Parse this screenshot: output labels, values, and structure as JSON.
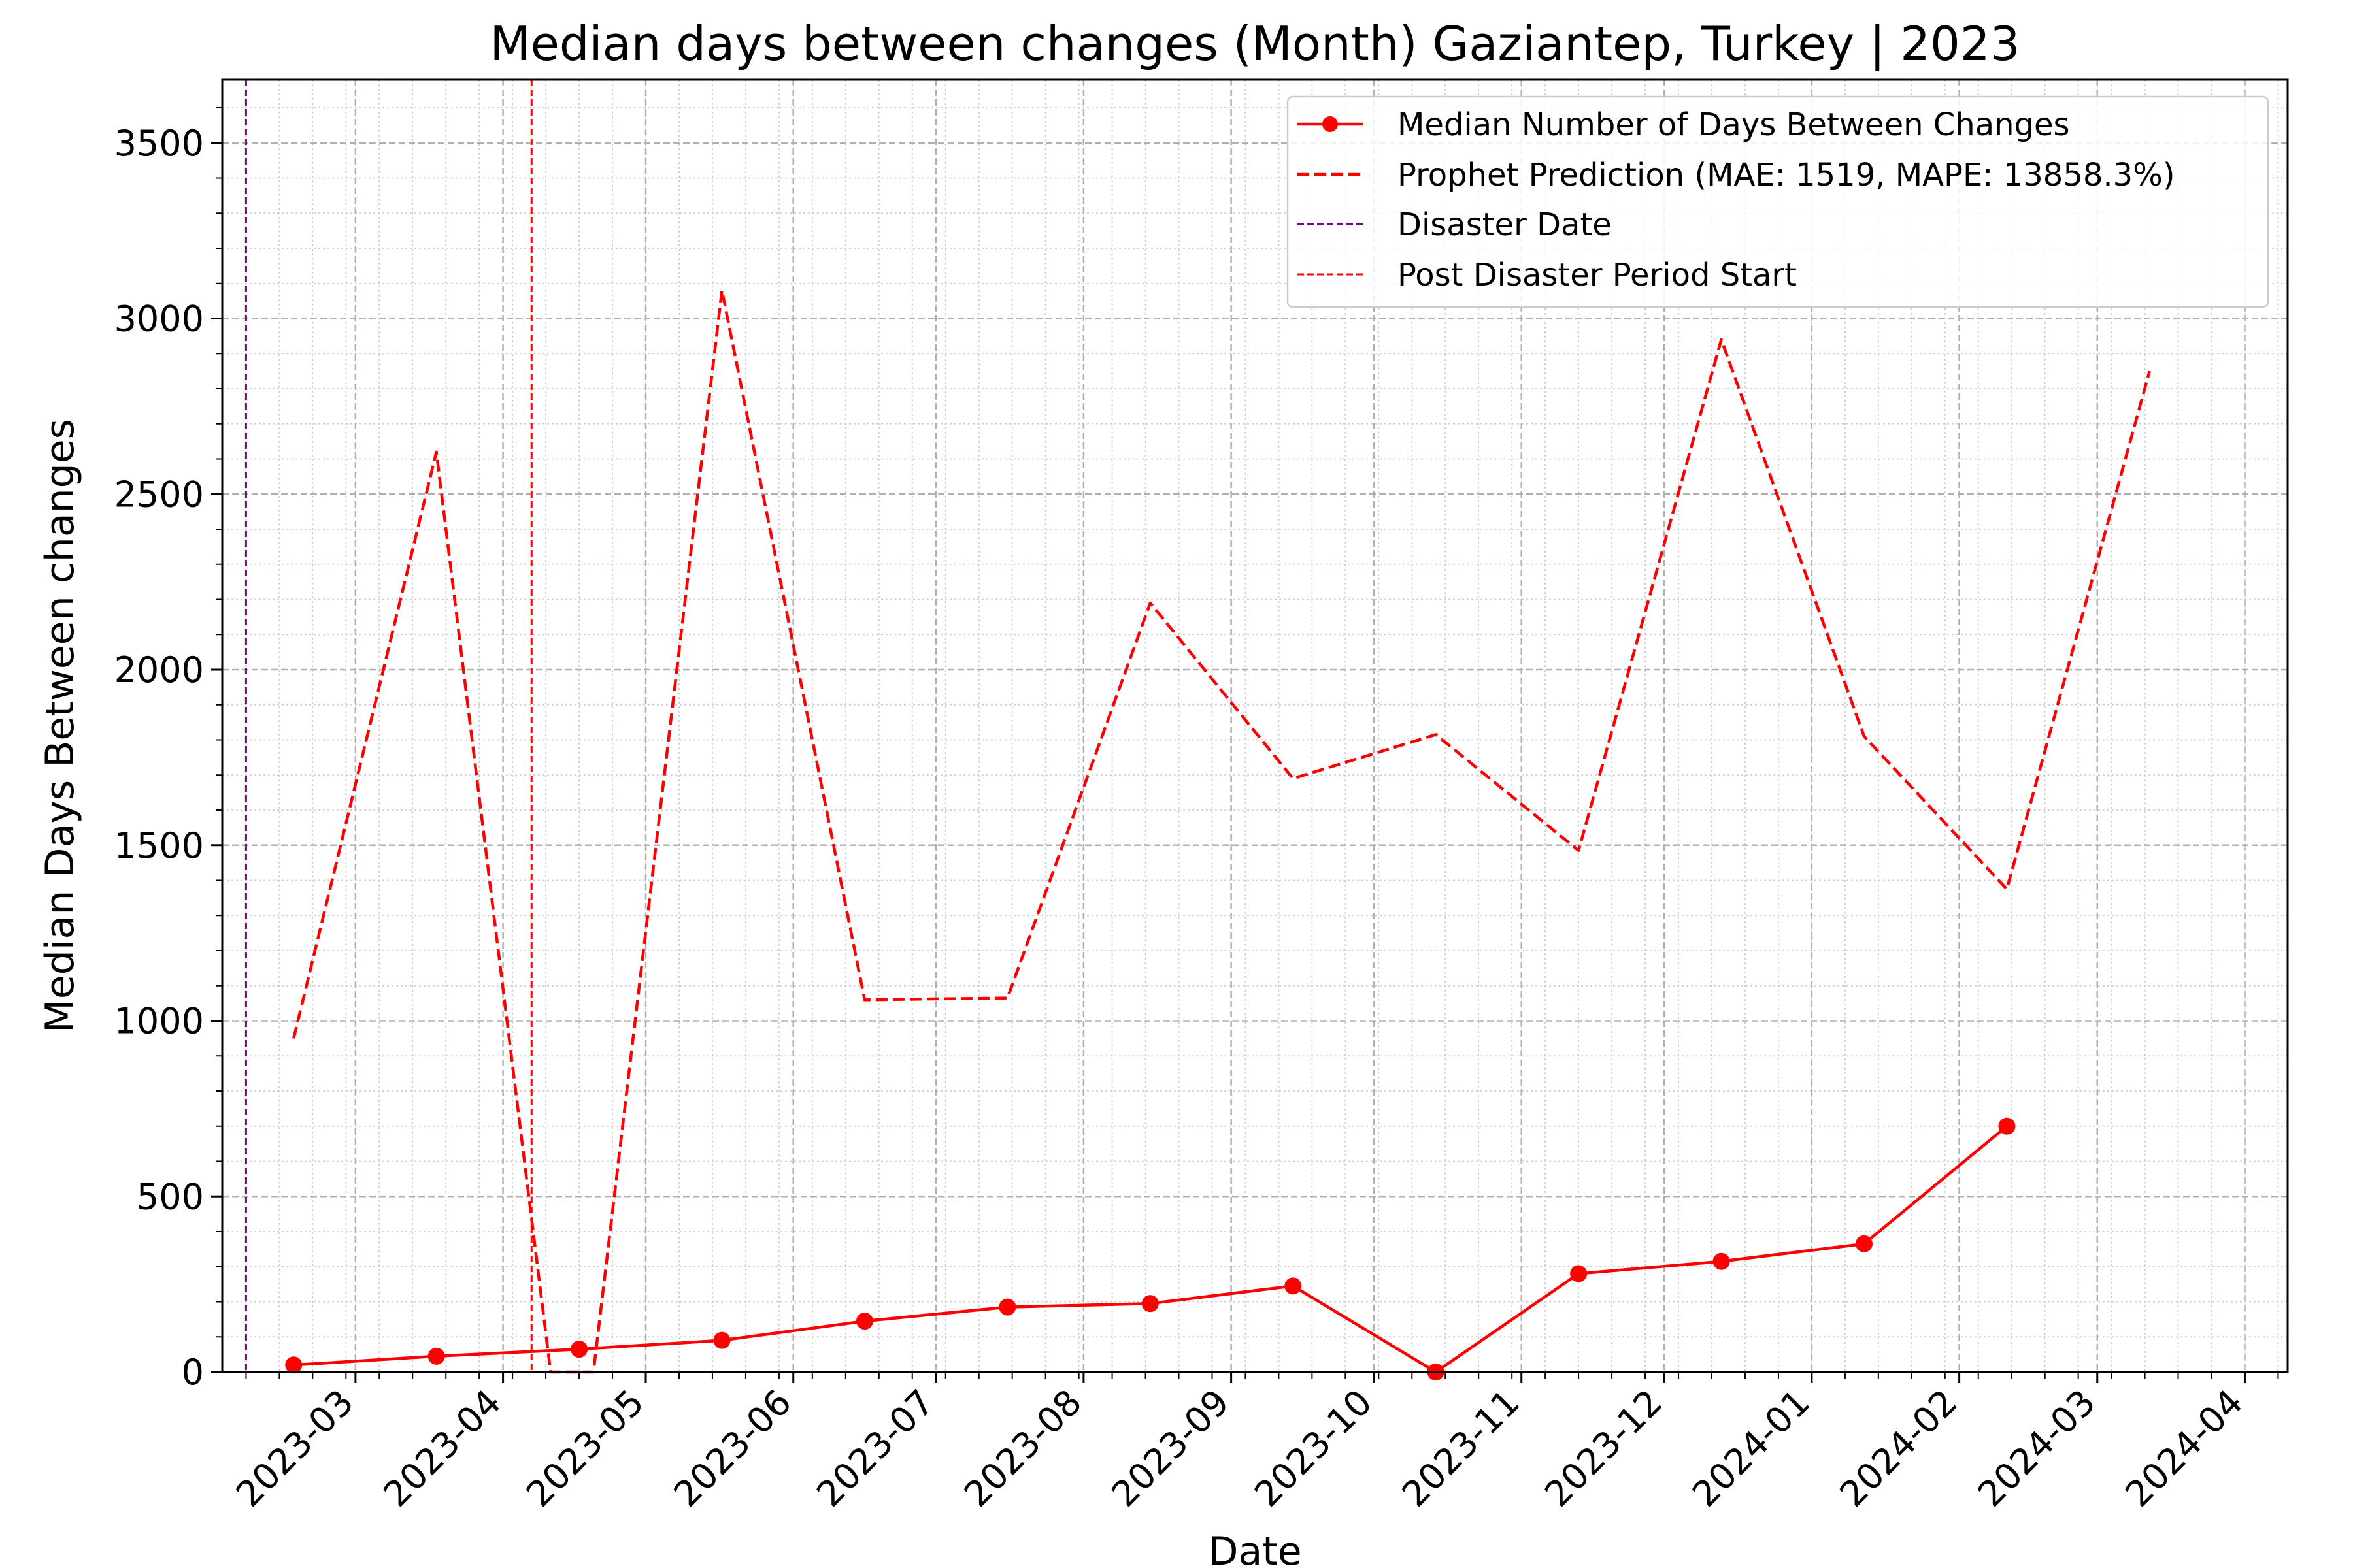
{
  "chart_data": {
    "type": "line",
    "title": "Median days between changes (Month) Gaziantep, Turkey | 2023",
    "xlabel": "Date",
    "ylabel": "Median Days Between changes",
    "ylim": [
      0,
      3680
    ],
    "xlim": [
      "2023-02-01",
      "2024-04-10"
    ],
    "grid": true,
    "legend_position": "top-right",
    "x_ticks": [
      "2023-03",
      "2023-04",
      "2023-05",
      "2023-06",
      "2023-07",
      "2023-08",
      "2023-09",
      "2023-10",
      "2023-11",
      "2023-12",
      "2024-01",
      "2024-02",
      "2024-03",
      "2024-04"
    ],
    "y_ticks": [
      "0",
      "500",
      "1000",
      "1500",
      "2000",
      "2500",
      "3000",
      "3500"
    ],
    "series": [
      {
        "name": "Median Number of Days Between Changes",
        "color": "#ff0000",
        "style": "solid-markers",
        "points": [
          {
            "x": "2023-02-16",
            "y": 20
          },
          {
            "x": "2023-03-18",
            "y": 45
          },
          {
            "x": "2023-04-17",
            "y": 65
          },
          {
            "x": "2023-05-17",
            "y": 90
          },
          {
            "x": "2023-06-16",
            "y": 145
          },
          {
            "x": "2023-07-16",
            "y": 185
          },
          {
            "x": "2023-08-15",
            "y": 195
          },
          {
            "x": "2023-09-14",
            "y": 245
          },
          {
            "x": "2023-10-14",
            "y": 0
          },
          {
            "x": "2023-11-13",
            "y": 280
          },
          {
            "x": "2023-12-13",
            "y": 315
          },
          {
            "x": "2024-01-12",
            "y": 365
          },
          {
            "x": "2024-02-11",
            "y": 700
          }
        ]
      },
      {
        "name": "Prophet Prediction (MAE: 1519, MAPE: 13858.3%)",
        "color": "#ff0000",
        "style": "dashed",
        "points": [
          {
            "x": "2023-02-16",
            "y": 950
          },
          {
            "x": "2023-03-18",
            "y": 2620
          },
          {
            "x": "2023-04-11",
            "y": 0
          },
          {
            "x": "2023-04-20",
            "y": 0
          },
          {
            "x": "2023-05-17",
            "y": 3080
          },
          {
            "x": "2023-06-16",
            "y": 1060
          },
          {
            "x": "2023-07-16",
            "y": 1065
          },
          {
            "x": "2023-08-15",
            "y": 2190
          },
          {
            "x": "2023-09-14",
            "y": 1690
          },
          {
            "x": "2023-10-14",
            "y": 1815
          },
          {
            "x": "2023-11-13",
            "y": 1485
          },
          {
            "x": "2023-12-13",
            "y": 2940
          },
          {
            "x": "2024-01-12",
            "y": 1810
          },
          {
            "x": "2024-02-11",
            "y": 1375
          },
          {
            "x": "2024-03-12",
            "y": 2850
          }
        ]
      }
    ],
    "vlines": [
      {
        "name": "Disaster Date",
        "x": "2023-02-06",
        "color": "#800080"
      },
      {
        "name": "Post Disaster Period Start",
        "x": "2023-04-07",
        "color": "#ff0000"
      }
    ]
  }
}
